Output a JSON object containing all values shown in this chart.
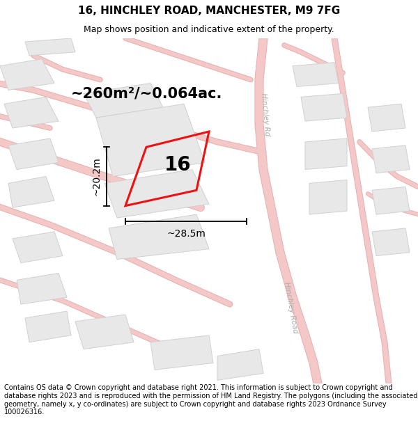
{
  "title": "16, HINCHLEY ROAD, MANCHESTER, M9 7FG",
  "subtitle": "Map shows position and indicative extent of the property.",
  "area_text": "~260m²/~0.064ac.",
  "width_label": "~28.5m",
  "height_label": "~20.2m",
  "property_number": "16",
  "footer_text": "Contains OS data © Crown copyright and database right 2021. This information is subject to Crown copyright and database rights 2023 and is reproduced with the permission of HM Land Registry. The polygons (including the associated geometry, namely x, y co-ordinates) are subject to Crown copyright and database rights 2023 Ordnance Survey 100026316.",
  "bg_color": "#ffffff",
  "map_bg_color": "#f7f7f7",
  "road_color": "#f5c8c8",
  "road_edge_color": "#e8b0b0",
  "building_fill": "#e8e8e8",
  "building_edge": "#d0d0d0",
  "property_color": "#ee1111",
  "road_label_color": "#aaaaaa",
  "title_fontsize": 11,
  "subtitle_fontsize": 9,
  "area_fontsize": 15,
  "label_fontsize": 10,
  "number_fontsize": 20,
  "footer_fontsize": 7.0,
  "road_lw": 6,
  "prop_lw": 2.2
}
